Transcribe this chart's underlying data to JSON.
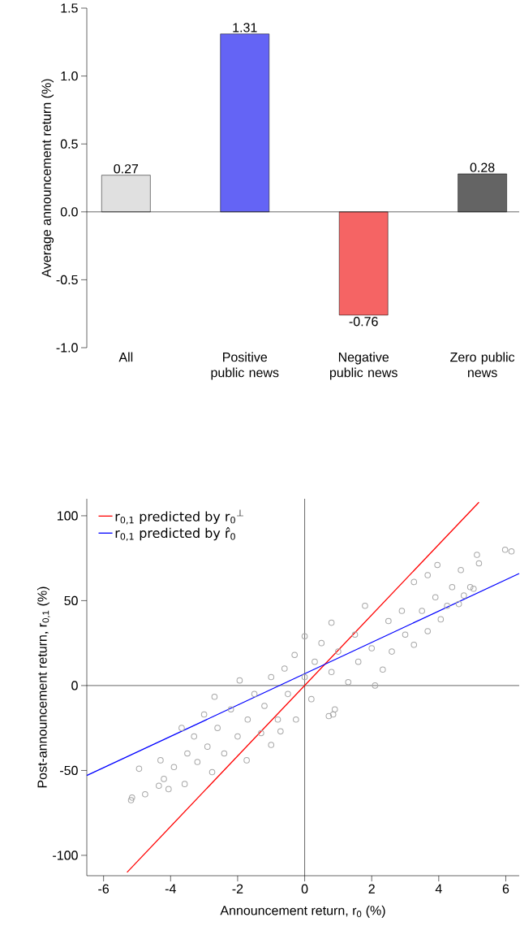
{
  "chart_data": [
    {
      "type": "bar",
      "ylabel": "Average announcement return (%)",
      "categories": [
        "All",
        "Positive public news",
        "Negative public news",
        "Zero public news"
      ],
      "values": [
        0.27,
        1.31,
        -0.76,
        0.28
      ],
      "colors": [
        "#e0e0e0",
        "#6464f5",
        "#f56464",
        "#646464"
      ],
      "ylim": [
        -1,
        1.5
      ],
      "yticks": [
        {
          "value": -1,
          "label": "-1.0"
        },
        -0.5,
        {
          "value": 0,
          "label": "0.0"
        },
        0.5,
        {
          "value": 1,
          "label": "1.0"
        },
        1.5
      ],
      "data_labels": true,
      "ref_lines": [
        {
          "axis": "y",
          "value": 0,
          "color": "#000000"
        }
      ]
    },
    {
      "type": "scatter",
      "xlabel": "Announcement return, r$_{0}$ (%)",
      "ylabel": "Post-announcement return, r$_{0,1}$ (%)",
      "xlim": [
        -6.5,
        6.4
      ],
      "ylim": [
        -112,
        110
      ],
      "xticks": [
        -6,
        -4,
        -2,
        0,
        2,
        4,
        6
      ],
      "yticks": [
        -100,
        -50,
        0,
        50,
        100
      ],
      "legend": "top left",
      "ref_lines": [
        {
          "axis": "x",
          "value": 0,
          "color": "#000000"
        },
        {
          "axis": "y",
          "value": 0,
          "color": "#000000"
        }
      ],
      "series": [
        {
          "type": "scatter",
          "marker": "circle",
          "color": "#a6a6a6",
          "x": [
            -5.18,
            -5.15,
            -4.94,
            -4.76,
            -4.35,
            -4.3,
            -4.06,
            -4.2,
            -3.9,
            -3.67,
            -3.58,
            -3.5,
            -3.3,
            -3.2,
            -3,
            -2.9,
            -2.76,
            -2.69,
            -2.6,
            -2.4,
            -2.2,
            -2.0,
            -1.94,
            -1.73,
            -1.7,
            -1.5,
            -1.3,
            -1.2,
            -1.0,
            -1.0,
            -0.8,
            -0.72,
            -0.6,
            -0.5,
            -0.26,
            -0.3,
            0,
            0,
            0.2,
            0.3,
            0.5,
            0.72,
            0.8,
            0.8,
            0.9,
            1.0,
            1.3,
            1.5,
            1.6,
            1.8,
            2.0,
            2.1,
            2.33,
            2.5,
            2.6,
            2.9,
            3.0,
            3.26,
            3.26,
            3.5,
            3.67,
            3.67,
            3.9,
            4.06,
            4.25,
            4.4,
            4.6,
            4.66,
            4.75,
            4.94,
            5.04,
            5.14,
            5.2,
            5.98,
            6.17,
            3.96,
            0.85
          ],
          "values": [
            -67.5,
            -66,
            -49,
            -64,
            -59,
            -44,
            -61,
            -55,
            -48,
            -25,
            -58,
            -40,
            -30,
            -45,
            -17,
            -36,
            -51,
            -6.6,
            -25,
            -40,
            -14,
            -30,
            3,
            -44,
            -20,
            -5,
            -28,
            -12,
            -35,
            5,
            -20,
            -27,
            10,
            -5,
            -20,
            18,
            29,
            5,
            -8,
            14,
            25,
            -18,
            37,
            8,
            -14,
            20,
            2,
            30,
            14,
            47,
            22,
            0,
            9.4,
            38,
            20,
            44,
            30,
            61,
            24,
            44,
            65,
            32,
            52,
            39,
            47,
            58,
            48,
            68,
            53,
            58,
            57,
            77,
            72,
            80,
            79,
            71,
            -17
          ]
        },
        {
          "type": "line",
          "name": "r$_{0,1}$ predicted by r$_{0}$$^{⊥}$",
          "color": "#ff0000",
          "x": [
            -5.3,
            5.2
          ],
          "values": [
            -110,
            108
          ]
        },
        {
          "type": "line",
          "name": "r$_{0,1}$ predicted by r̂$_{0}$",
          "color": "#0000ff",
          "x": [
            -6.5,
            6.4
          ],
          "values": [
            -53,
            66
          ]
        }
      ]
    }
  ]
}
